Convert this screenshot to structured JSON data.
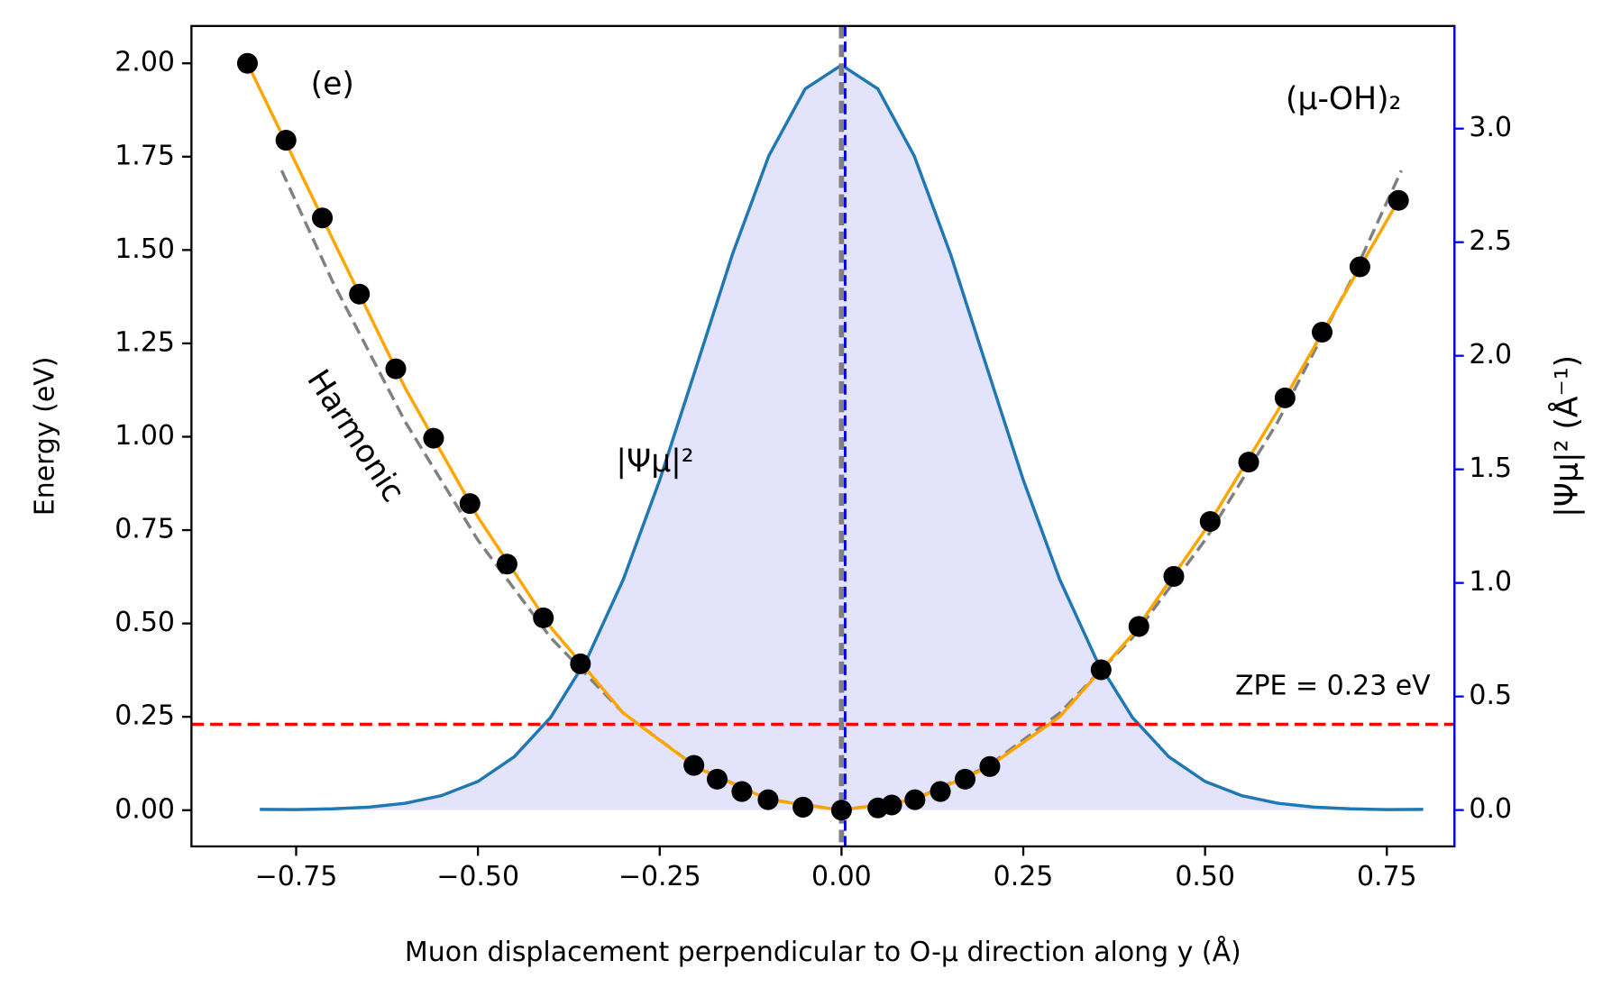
{
  "chart_data": {
    "type": "line",
    "xlabel": "Muon displacement perpendicular to O-μ direction along y (Å)",
    "ylabel": "Energy (eV)",
    "y2label": "|Ψμ|² (Å⁻¹)",
    "xlim": [
      -0.894,
      0.843
    ],
    "ylim": [
      -0.097,
      2.1
    ],
    "y2lim": [
      -0.16,
      3.452
    ],
    "xticks": [
      {
        "value": -0.75,
        "label": "−0.75"
      },
      {
        "value": -0.5,
        "label": "−0.50"
      },
      {
        "value": -0.25,
        "label": "−0.25"
      },
      {
        "value": 0,
        "label": "0.00"
      },
      0.25,
      {
        "value": 0.5,
        "label": "0.50"
      },
      0.75
    ],
    "yticks": [
      {
        "value": 0,
        "label": "0.00"
      },
      0.25,
      {
        "value": 0.5,
        "label": "0.50"
      },
      0.75,
      {
        "value": 1,
        "label": "1.00"
      },
      1.25,
      {
        "value": 1.5,
        "label": "1.50"
      },
      1.75,
      {
        "value": 2,
        "label": "2.00"
      }
    ],
    "y2ticks": [
      {
        "value": 0,
        "label": "0.0"
      },
      0.5,
      {
        "value": 1,
        "label": "1.0"
      },
      1.5,
      {
        "value": 2,
        "label": "2.0"
      },
      2.5,
      {
        "value": 3,
        "label": "3.0"
      }
    ],
    "y2color": "#0000ff",
    "series": [
      {
        "style": "fill",
        "axis": "y2",
        "color": "#1f77b4",
        "fill": "#e3e3fc",
        "x": [
          -0.8,
          -0.75,
          -0.7,
          -0.65,
          -0.6,
          -0.55,
          -0.5,
          -0.45,
          -0.4,
          -0.35,
          -0.3,
          -0.25,
          -0.2,
          -0.15,
          -0.1,
          -0.05,
          0,
          0.05,
          0.1,
          0.15,
          0.2,
          0.25,
          0.3,
          0.35,
          0.4,
          0.45,
          0.5,
          0.55,
          0.6,
          0.65,
          0.7,
          0.75,
          0.8
        ],
        "values": [
          0.003,
          0.002,
          0.0055,
          0.013,
          0.03,
          0.064,
          0.126,
          0.235,
          0.408,
          0.666,
          1.016,
          1.453,
          1.948,
          2.447,
          2.88,
          3.175,
          3.28,
          3.175,
          2.88,
          2.447,
          1.948,
          1.453,
          1.016,
          0.666,
          0.408,
          0.235,
          0.126,
          0.064,
          0.03,
          0.013,
          0.0055,
          0.002,
          0.003
        ]
      },
      {
        "style": "dashed",
        "color": "#808080",
        "x": [
          -0.77,
          -0.7,
          -0.6,
          -0.5,
          -0.4,
          -0.3,
          -0.2,
          -0.1,
          0,
          0.1,
          0.2,
          0.3,
          0.4,
          0.5,
          0.6,
          0.7,
          0.77
        ],
        "values": [
          1.713,
          1.416,
          1.04,
          0.723,
          0.462,
          0.26,
          0.116,
          0.029,
          0,
          0.029,
          0.116,
          0.26,
          0.462,
          0.723,
          1.04,
          1.416,
          1.713
        ]
      },
      {
        "style": "solid",
        "color": "#ffa500",
        "x": [
          -0.817,
          -0.7,
          -0.6,
          -0.5,
          -0.4,
          -0.3,
          -0.2,
          -0.1,
          0,
          0.1,
          0.2,
          0.3,
          0.4,
          0.5,
          0.6,
          0.7,
          0.766
        ],
        "values": [
          2.0,
          1.53,
          1.13,
          0.785,
          0.49,
          0.26,
          0.115,
          0.028,
          0,
          0.028,
          0.113,
          0.25,
          0.47,
          0.75,
          1.07,
          1.41,
          1.633
        ]
      },
      {
        "style": "points",
        "color": "#000000",
        "x": [
          -0.817,
          -0.764,
          -0.714,
          -0.663,
          -0.613,
          -0.561,
          -0.511,
          -0.46,
          -0.41,
          -0.359,
          -0.203,
          -0.171,
          -0.137,
          -0.101,
          -0.053,
          0,
          0.05,
          0.069,
          0.101,
          0.136,
          0.17,
          0.204,
          0.357,
          0.409,
          0.457,
          0.507,
          0.56,
          0.61,
          0.661,
          0.713,
          0.766
        ],
        "values": [
          2.0,
          1.794,
          1.586,
          1.382,
          1.182,
          0.996,
          0.821,
          0.659,
          0.515,
          0.392,
          0.12,
          0.083,
          0.05,
          0.028,
          0.008,
          0,
          0.006,
          0.014,
          0.028,
          0.05,
          0.083,
          0.117,
          0.376,
          0.492,
          0.626,
          0.773,
          0.932,
          1.104,
          1.28,
          1.455,
          1.633
        ]
      }
    ],
    "vlines": [
      {
        "value": 0,
        "color": "#808080"
      },
      {
        "value": 0.005,
        "color": "#0000ff"
      }
    ],
    "hlines": [
      {
        "value": 0.23,
        "color": "#ff0000"
      }
    ],
    "annotations": [
      {
        "text": "(e)",
        "x": -0.73,
        "y": 1.94,
        "color": "#000000",
        "size": 30
      },
      {
        "text": "(μ-OH)₂",
        "x": 0.77,
        "y": 1.9,
        "color": "#000000",
        "size": 30,
        "anchor": "end"
      },
      {
        "text": "Harmonic",
        "x": -0.67,
        "y": 1.0,
        "color": "#808080",
        "size": 30,
        "rotate": 57
      },
      {
        "text": "|Ψμ|²",
        "x": -0.31,
        "y": 0.93,
        "color": "#0000ff",
        "size": 30
      },
      {
        "text": "ZPE = 0.23 eV",
        "x": 0.81,
        "y": 0.33,
        "color": "#ff0000",
        "size": 26,
        "anchor": "end"
      }
    ]
  }
}
